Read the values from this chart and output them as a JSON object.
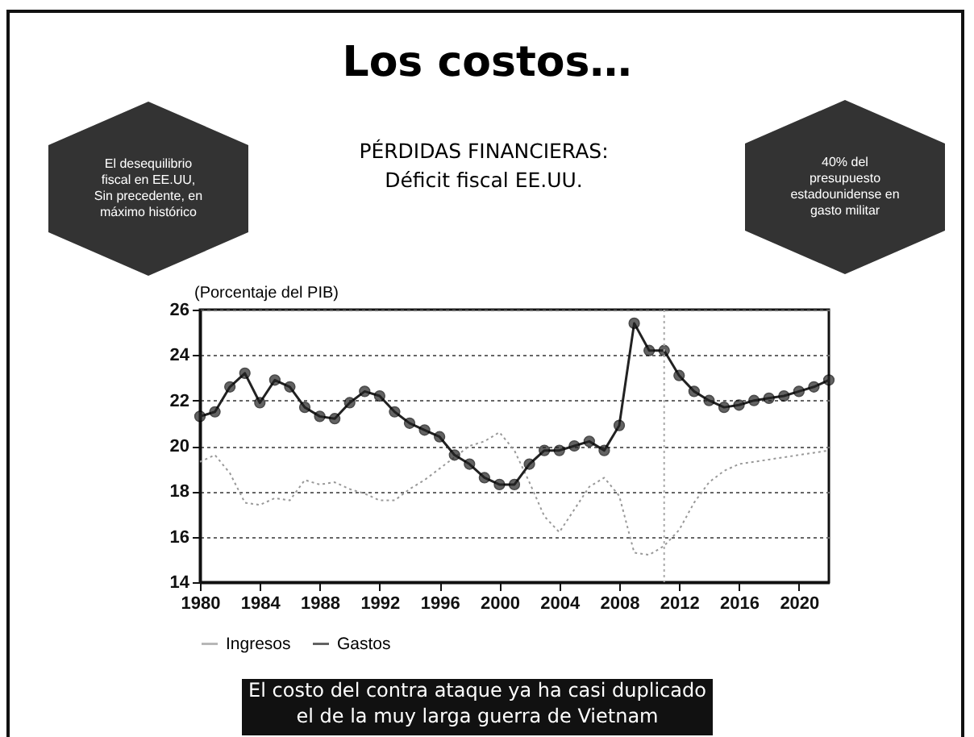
{
  "chart_data": {
    "type": "line",
    "title": "Los costos…",
    "subtitle": "PÉRDIDAS FINANCIERAS:\nDéficit fiscal EE.UU.",
    "ylabel": "(Porcentaje del PIB)",
    "annotations": [
      "El desequilibrio fiscal en EE.UU, Sin precedente, en máximo histórico",
      "40% del presupuesto estadounidense en gasto militar",
      "El costo del contra ataque ya ha casi duplicado el de la muy larga guerra de Vietnam"
    ],
    "x": [
      1980,
      1981,
      1982,
      1983,
      1984,
      1985,
      1986,
      1987,
      1988,
      1989,
      1990,
      1991,
      1992,
      1993,
      1994,
      1995,
      1996,
      1997,
      1998,
      1999,
      2000,
      2001,
      2002,
      2003,
      2004,
      2005,
      2006,
      2007,
      2008,
      2009,
      2010,
      2011,
      2012,
      2013,
      2014,
      2015,
      2016,
      2017,
      2018,
      2019,
      2020,
      2021,
      2022
    ],
    "series": [
      {
        "name": "Ingresos",
        "color": "#999999",
        "line_style": "dotted",
        "marker": "none",
        "values": [
          19.3,
          19.6,
          18.8,
          17.5,
          17.4,
          17.7,
          17.6,
          18.5,
          18.3,
          18.4,
          18.1,
          17.9,
          17.6,
          17.6,
          18.1,
          18.5,
          19.0,
          19.5,
          20.0,
          20.2,
          20.6,
          19.8,
          18.4,
          16.9,
          16.2,
          17.2,
          18.2,
          18.6,
          17.8,
          15.3,
          15.2,
          15.6,
          16.3,
          17.5,
          18.4,
          18.9,
          19.2,
          19.3,
          19.4,
          19.5,
          19.6,
          19.7,
          19.8
        ]
      },
      {
        "name": "Gastos",
        "color": "#222222",
        "line_style": "solid",
        "marker": "circle",
        "values": [
          21.3,
          21.5,
          22.6,
          23.2,
          21.9,
          22.9,
          22.6,
          21.7,
          21.3,
          21.2,
          21.9,
          22.4,
          22.2,
          21.5,
          21.0,
          20.7,
          20.4,
          19.6,
          19.2,
          18.6,
          18.3,
          18.3,
          19.2,
          19.8,
          19.8,
          20.0,
          20.2,
          19.8,
          20.9,
          25.4,
          24.2,
          24.2,
          23.1,
          22.4,
          22.0,
          21.7,
          21.8,
          22.0,
          22.1,
          22.2,
          22.4,
          22.6,
          22.9
        ]
      }
    ],
    "xlim": [
      1980,
      2022
    ],
    "xticks": [
      1980,
      1984,
      1988,
      1992,
      1996,
      2000,
      2004,
      2008,
      2012,
      2016,
      2020
    ],
    "ylim": [
      14,
      26
    ],
    "yticks": [
      14,
      16,
      18,
      20,
      22,
      24,
      26
    ],
    "ref_lines": [
      {
        "axis": "x",
        "value": 2011,
        "label": null,
        "color": "#aaaaaa",
        "line_style": "dotted"
      }
    ],
    "grid": "y",
    "legend": "bottom"
  }
}
